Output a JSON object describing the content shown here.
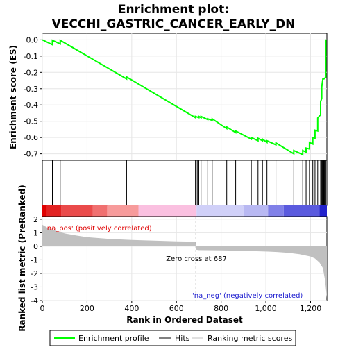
{
  "chart_data": {
    "type": "line",
    "title_line1": "Enrichment plot:",
    "title_line2": "VECCHI_GASTRIC_CANCER_EARLY_DN",
    "top_panel": {
      "ylabel": "Enrichment score (ES)",
      "ylim": [
        -0.74,
        0.04
      ],
      "yticks": [
        0.0,
        -0.1,
        -0.2,
        -0.3,
        -0.4,
        -0.5,
        -0.6,
        -0.7
      ],
      "ytick_labels": [
        "0.0",
        "-0.1",
        "-0.2",
        "-0.3",
        "-0.4",
        "-0.5",
        "-0.6",
        "-0.7"
      ],
      "line_color": "#00ff00",
      "series": [
        {
          "name": "Enrichment profile",
          "x": [
            0,
            45,
            45,
            80,
            80,
            377,
            377,
            685,
            685,
            700,
            700,
            710,
            710,
            740,
            740,
            760,
            760,
            825,
            825,
            865,
            865,
            935,
            935,
            965,
            965,
            985,
            985,
            1005,
            1005,
            1045,
            1045,
            1125,
            1125,
            1165,
            1165,
            1180,
            1180,
            1195,
            1195,
            1210,
            1210,
            1220,
            1220,
            1232,
            1232,
            1245,
            1245,
            1250,
            1250,
            1255,
            1255,
            1260,
            1260,
            1268,
            1268
          ],
          "y": [
            0.0,
            -0.03,
            -0.003,
            -0.025,
            -0.003,
            -0.24,
            -0.228,
            -0.478,
            -0.47,
            -0.478,
            -0.47,
            -0.478,
            -0.47,
            -0.49,
            -0.485,
            -0.495,
            -0.485,
            -0.545,
            -0.535,
            -0.57,
            -0.56,
            -0.61,
            -0.6,
            -0.62,
            -0.605,
            -0.62,
            -0.61,
            -0.63,
            -0.62,
            -0.645,
            -0.633,
            -0.7,
            -0.68,
            -0.705,
            -0.68,
            -0.69,
            -0.665,
            -0.67,
            -0.63,
            -0.64,
            -0.6,
            -0.605,
            -0.555,
            -0.56,
            -0.48,
            -0.46,
            -0.38,
            -0.36,
            -0.29,
            -0.24,
            -0.24,
            -0.24,
            -0.24,
            -0.23,
            0.003
          ]
        }
      ]
    },
    "hits": [
      45,
      80,
      377,
      685,
      693,
      700,
      710,
      740,
      760,
      825,
      865,
      935,
      965,
      985,
      1005,
      1045,
      1125,
      1165,
      1180,
      1195,
      1210,
      1220,
      1232,
      1245,
      1250,
      1253,
      1255,
      1258,
      1260,
      1262,
      1268
    ],
    "heat_bar": [
      {
        "from": 0,
        "to": 20,
        "color": "#e00000"
      },
      {
        "from": 20,
        "to": 85,
        "color": "#e22222"
      },
      {
        "from": 85,
        "to": 225,
        "color": "#ea4a4a"
      },
      {
        "from": 225,
        "to": 290,
        "color": "#f07070"
      },
      {
        "from": 290,
        "to": 430,
        "color": "#f79b9b"
      },
      {
        "from": 430,
        "to": 690,
        "color": "#fac0e0"
      },
      {
        "from": 690,
        "to": 900,
        "color": "#d0d0f8"
      },
      {
        "from": 900,
        "to": 1010,
        "color": "#b8b8f2"
      },
      {
        "from": 1010,
        "to": 1080,
        "color": "#8080e8"
      },
      {
        "from": 1080,
        "to": 1240,
        "color": "#5a5ade"
      },
      {
        "from": 1240,
        "to": 1273,
        "color": "#2222cc"
      }
    ],
    "bottom_panel": {
      "ylabel": "Ranked list metric (PreRanked)",
      "ylim": [
        -4,
        2.2
      ],
      "yticks": [
        2,
        1,
        0,
        -1,
        -2,
        -3,
        -4
      ],
      "ytick_labels": [
        "2",
        "1",
        "0",
        "-1",
        "-2",
        "-3",
        "-4"
      ],
      "metric_x": [
        0,
        20,
        50,
        100,
        150,
        200,
        300,
        400,
        500,
        600,
        687,
        687,
        700,
        800,
        900,
        1000,
        1050,
        1100,
        1150,
        1200,
        1220,
        1240,
        1255,
        1265,
        1273
      ],
      "metric_y": [
        1.6,
        1.4,
        1.2,
        0.95,
        0.8,
        0.68,
        0.55,
        0.47,
        0.42,
        0.37,
        0.34,
        -0.25,
        -0.28,
        -0.3,
        -0.33,
        -0.38,
        -0.42,
        -0.48,
        -0.58,
        -0.75,
        -0.9,
        -1.2,
        -1.6,
        -2.5,
        -3.8
      ],
      "label_pos": "'na_pos' (positively correlated)",
      "label_neg": "'na_neg' (negatively correlated)",
      "zero_cross_label": "Zero cross at 687",
      "zero_cross": 687
    },
    "xlabel": "Rank in Ordered Dataset",
    "xlim": [
      0,
      1273
    ],
    "xticks": [
      0,
      200,
      400,
      600,
      800,
      1000,
      1200
    ],
    "xtick_labels": [
      "0",
      "200",
      "400",
      "600",
      "800",
      "1,000",
      "1,200"
    ],
    "legend": {
      "placement": "bottom",
      "entries": [
        {
          "label": "Enrichment profile",
          "color": "#00ff00"
        },
        {
          "label": "Hits",
          "color": "#000000"
        },
        {
          "label": "Ranking metric scores",
          "color": "#c0c0c0"
        }
      ]
    }
  }
}
